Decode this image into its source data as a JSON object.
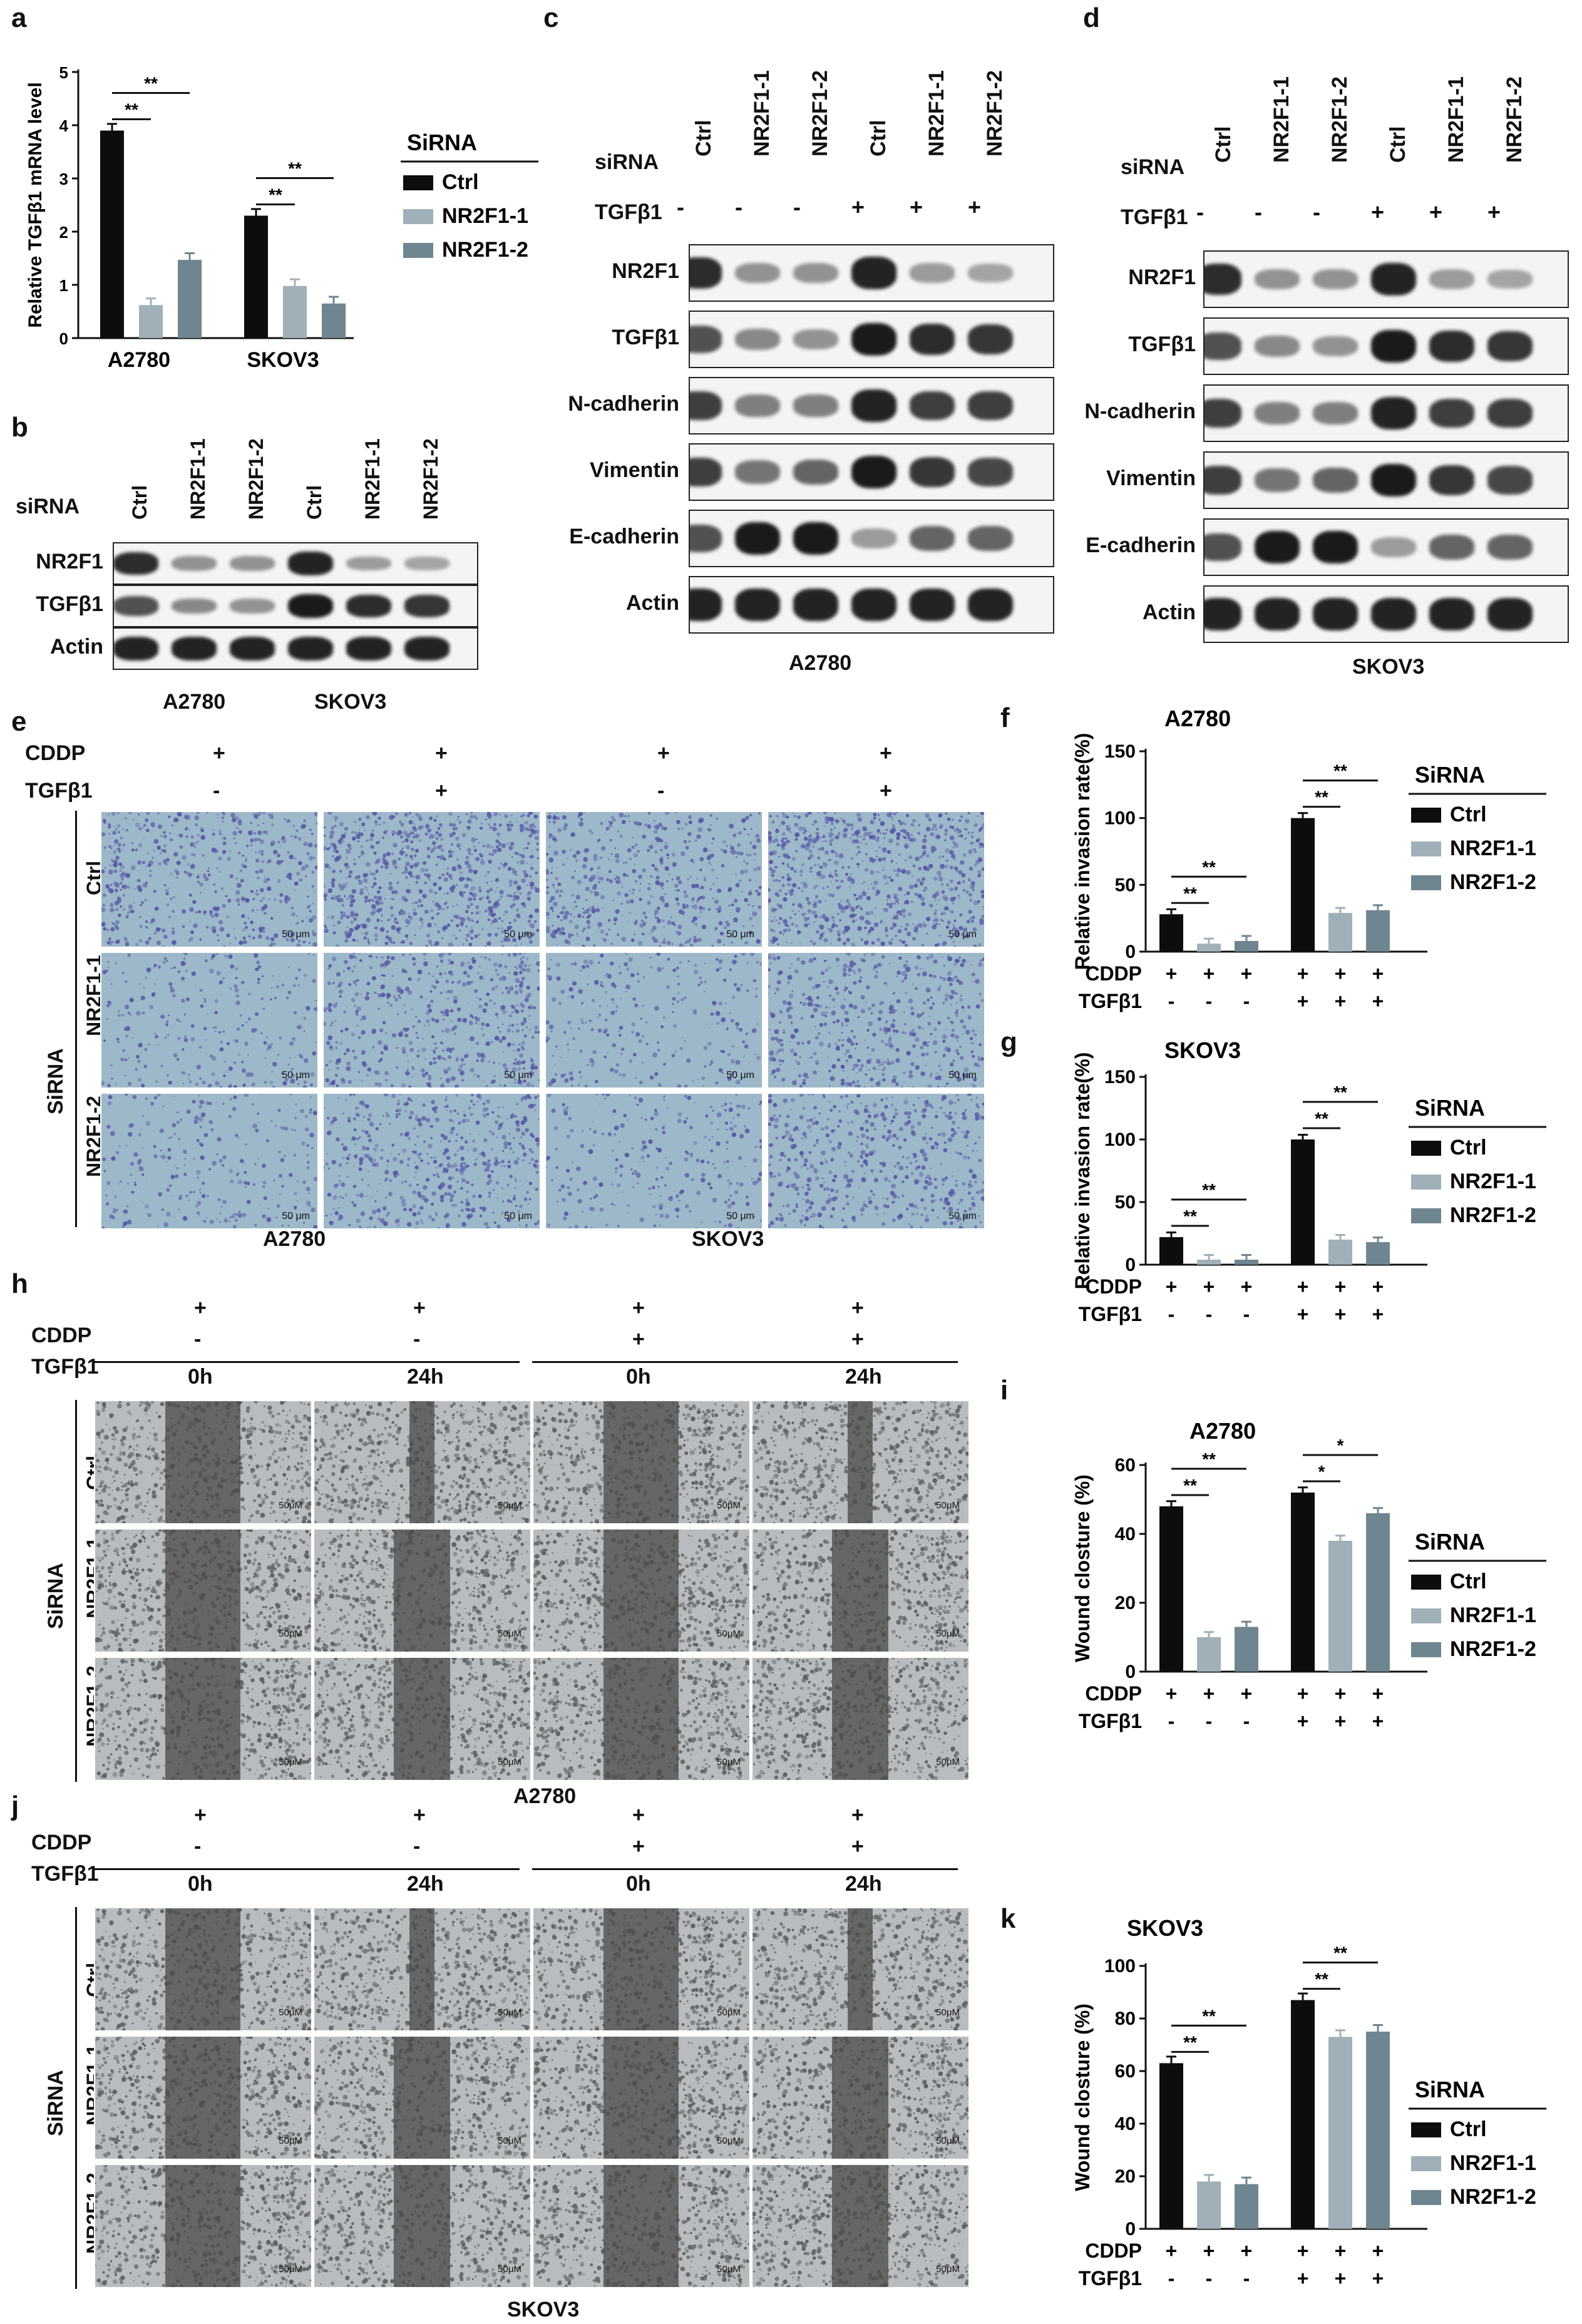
{
  "panels": [
    "a",
    "b",
    "c",
    "d",
    "e",
    "f",
    "g",
    "h",
    "i",
    "j",
    "k"
  ],
  "legend_title": "SiRNA",
  "legend_items": [
    "Ctrl",
    "NR2F1-1",
    "NR2F1-2"
  ],
  "colors": {
    "ctrl": "#0d0d0d",
    "nr2f1_1": "#9fb0b8",
    "nr2f1_2": "#6f858f",
    "invasion_stain": "#5a5aa8",
    "wound_gap": "#4a4a4a"
  },
  "sig": {
    "double": "**",
    "single": "*"
  },
  "chart_data": [
    {
      "panel": "a",
      "type": "bar",
      "ylabel": "Relative TGFβ1 mRNA level",
      "ylim": [
        0,
        5
      ],
      "yticks": [
        "0",
        "1",
        "2",
        "3",
        "4",
        "5"
      ],
      "categories": [
        "A2780",
        "SKOV3"
      ],
      "series": [
        {
          "name": "Ctrl",
          "values": [
            3.9,
            2.3
          ]
        },
        {
          "name": "NR2F1-1",
          "values": [
            0.62,
            0.98
          ]
        },
        {
          "name": "NR2F1-2",
          "values": [
            1.47,
            0.65
          ]
        }
      ]
    },
    {
      "panel": "f",
      "type": "bar",
      "title": "A2780",
      "ylabel": "Relative invasion rate(%)",
      "ylim": [
        0,
        150
      ],
      "yticks": [
        "0",
        "50",
        "100",
        "150"
      ],
      "series": [
        {
          "name": "Ctrl",
          "values": [
            28,
            100
          ]
        },
        {
          "name": "NR2F1-1",
          "values": [
            6,
            29
          ]
        },
        {
          "name": "NR2F1-2",
          "values": [
            8,
            31
          ]
        }
      ]
    },
    {
      "panel": "g",
      "type": "bar",
      "title": "SKOV3",
      "ylabel": "Relative invasion rate(%)",
      "ylim": [
        0,
        150
      ],
      "yticks": [
        "0",
        "50",
        "100",
        "150"
      ],
      "series": [
        {
          "name": "Ctrl",
          "values": [
            22,
            100
          ]
        },
        {
          "name": "NR2F1-1",
          "values": [
            4,
            20
          ]
        },
        {
          "name": "NR2F1-2",
          "values": [
            4,
            18
          ]
        }
      ]
    },
    {
      "panel": "i",
      "type": "bar",
      "title": "A2780",
      "ylabel": "Wound closture (%)",
      "ylim": [
        0,
        60
      ],
      "yticks": [
        "0",
        "20",
        "40",
        "60"
      ],
      "series": [
        {
          "name": "Ctrl",
          "values": [
            48,
            52
          ]
        },
        {
          "name": "NR2F1-1",
          "values": [
            10,
            38
          ]
        },
        {
          "name": "NR2F1-2",
          "values": [
            13,
            46
          ]
        }
      ]
    },
    {
      "panel": "k",
      "type": "bar",
      "title": "SKOV3",
      "ylabel": "Wound closture (%)",
      "ylim": [
        0,
        100
      ],
      "yticks": [
        "0",
        "20",
        "40",
        "60",
        "80",
        "100"
      ],
      "series": [
        {
          "name": "Ctrl",
          "values": [
            63,
            87
          ]
        },
        {
          "name": "NR2F1-1",
          "values": [
            18,
            73
          ]
        },
        {
          "name": "NR2F1-2",
          "values": [
            17,
            75
          ]
        }
      ]
    }
  ],
  "treat": {
    "cddp": "CDDP",
    "tgfb1": "TGFβ1",
    "plus": "+",
    "minus": "-",
    "sirna": "siRNA",
    "SiRNA": "SiRNA"
  },
  "blots": {
    "b": {
      "lanes": [
        "Ctrl",
        "NR2F1-1",
        "NR2F1-2",
        "Ctrl",
        "NR2F1-1",
        "NR2F1-2"
      ],
      "rows": [
        "NR2F1",
        "TGFβ1",
        "Actin"
      ],
      "groups": [
        "A2780",
        "SKOV3"
      ]
    },
    "c": {
      "lanes": [
        "Ctrl",
        "NR2F1-1",
        "NR2F1-2",
        "Ctrl",
        "NR2F1-1",
        "NR2F1-2"
      ],
      "rows": [
        "NR2F1",
        "TGFβ1",
        "N-cadherin",
        "Vimentin",
        "E-cadherin",
        "Actin"
      ],
      "cell": "A2780"
    },
    "d": {
      "lanes": [
        "Ctrl",
        "NR2F1-1",
        "NR2F1-2",
        "Ctrl",
        "NR2F1-1",
        "NR2F1-2"
      ],
      "rows": [
        "NR2F1",
        "TGFβ1",
        "N-cadherin",
        "Vimentin",
        "E-cadherin",
        "Actin"
      ],
      "cell": "SKOV3"
    }
  },
  "micro": {
    "rows": [
      "Ctrl",
      "NR2F1-1",
      "NR2F1-2"
    ],
    "cells": [
      "A2780",
      "SKOV3"
    ],
    "scale_um": "50 μm",
    "scale_uM": "50μM",
    "times": [
      "0h",
      "24h",
      "0h",
      "24h"
    ]
  }
}
